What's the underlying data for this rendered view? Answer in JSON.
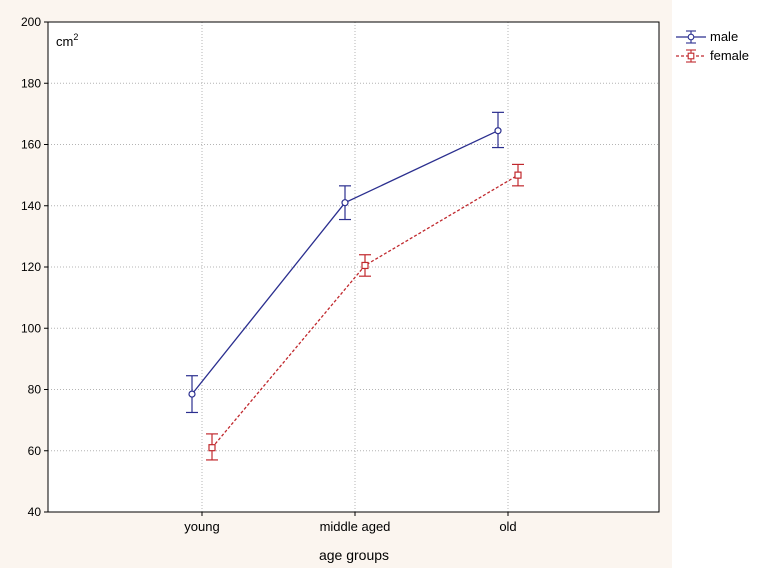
{
  "chart_data": {
    "type": "line",
    "title": "",
    "xlabel": "age groups",
    "ylabel": "cm²",
    "ylabel_base": "cm",
    "ylabel_sup": "2",
    "categories": [
      "young",
      "middle aged",
      "old"
    ],
    "ylim": [
      40,
      200
    ],
    "yticks": [
      40,
      60,
      80,
      100,
      120,
      140,
      160,
      180,
      200
    ],
    "grid": true,
    "legend_position": "top-right, outside plot",
    "series": [
      {
        "name": "male",
        "values": [
          78.5,
          141,
          164.5
        ],
        "error_low": [
          72.5,
          135.5,
          159
        ],
        "error_high": [
          84.5,
          146.5,
          170.5
        ],
        "color": "#2b2f8f",
        "line_style": "solid",
        "marker": "circle"
      },
      {
        "name": "female",
        "values": [
          61,
          120.5,
          150
        ],
        "error_low": [
          57,
          117,
          146.5
        ],
        "error_high": [
          65.5,
          124,
          153.5
        ],
        "color": "#c0282d",
        "line_style": "dashed",
        "marker": "square"
      }
    ],
    "colors": {
      "background": "#fbf5ef",
      "plot_area": "#ffffff",
      "grid": "#b4b4b4"
    }
  }
}
